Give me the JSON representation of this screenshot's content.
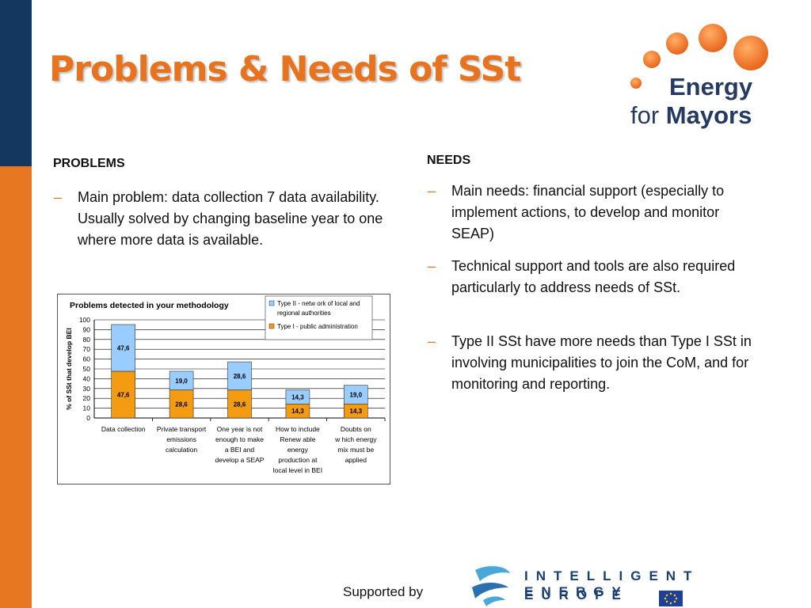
{
  "slide": {
    "title": "Problems & Needs of SSt",
    "colors": {
      "accent": "#e87722",
      "navy": "#13375e"
    }
  },
  "logo": {
    "line1": "Energy",
    "line2_prefix": "for ",
    "line2_bold": "Mayors"
  },
  "problems": {
    "heading": "PROBLEMS",
    "bullets": [
      "Main problem:  data collection 7 data availability. Usually solved by changing baseline year to one where more data is available."
    ]
  },
  "needs": {
    "heading": "NEEDS",
    "bullets": [
      "Main needs: financial support (especially to implement actions, to develop and monitor SEAP)",
      "Technical support and tools are also required particularly to address needs of SSt.",
      "Type II SSt have more needs than Type I SSt in involving municipalities to join the CoM, and for monitoring and reporting."
    ]
  },
  "footer": {
    "supported": "Supported by",
    "iee_line1": "INTELLIGENT ENERGY",
    "iee_line2": "EUROPE"
  },
  "chart_data": {
    "type": "bar",
    "stacked": true,
    "title": "Problems detected in your methodology",
    "ylabel": "% of SSt that develop BEI",
    "ylim": [
      0,
      100
    ],
    "yticks": [
      0,
      10,
      20,
      30,
      40,
      50,
      60,
      70,
      80,
      90,
      100
    ],
    "categories": [
      [
        "Data collection"
      ],
      [
        "Private transport",
        "emissions",
        "calculation"
      ],
      [
        "One year is not",
        "enough to make",
        "a BEI and",
        "develop a SEAP"
      ],
      [
        "How  to include",
        "Renew able",
        "energy",
        "production at",
        "local level in BEI"
      ],
      [
        "Doubts on",
        "w hich energy",
        "mix must be",
        "applied"
      ]
    ],
    "series": [
      {
        "name": "Type I - public administration",
        "color": "#f39c12",
        "values": [
          47.6,
          28.6,
          28.6,
          14.3,
          14.3
        ],
        "labels": [
          "47,6",
          "28,6",
          "28,6",
          "14,3",
          "14,3"
        ]
      },
      {
        "name": "Type II - netw ork of local and regional authorities",
        "color": "#99ccff",
        "values": [
          47.6,
          19.0,
          28.6,
          14.3,
          19.0
        ],
        "labels": [
          "47,6",
          "19,0",
          "28,6",
          "14,3",
          "19,0"
        ]
      }
    ],
    "legend_position": "top-right",
    "legend_lines": [
      [
        "Type II - netw ork of local and",
        "regional authorities"
      ],
      [
        "Type I - public administration"
      ]
    ]
  }
}
